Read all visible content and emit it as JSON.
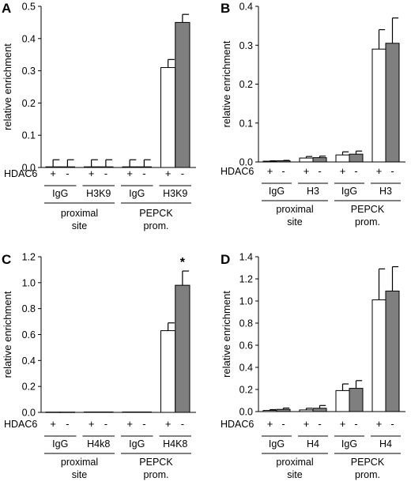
{
  "chart_data": [
    {
      "panel": "A",
      "type": "bar",
      "ylabel": "relative enrichment",
      "ylim": [
        0,
        0.5
      ],
      "yticks": [
        "0.0",
        "0.1",
        "0.2",
        "0.3",
        "0.4",
        "0.5"
      ],
      "row_label": "HDAC6",
      "bars": [
        {
          "treat": "+",
          "value": 0.002,
          "error": 0.022,
          "color": "white"
        },
        {
          "treat": "-",
          "value": 0.002,
          "error": 0.022,
          "color": "grey"
        },
        {
          "treat": "+",
          "value": 0.002,
          "error": 0.022,
          "color": "white"
        },
        {
          "treat": "-",
          "value": 0.002,
          "error": 0.022,
          "color": "grey"
        },
        {
          "treat": "+",
          "value": 0.002,
          "error": 0.022,
          "color": "white"
        },
        {
          "treat": "-",
          "value": 0.002,
          "error": 0.022,
          "color": "grey"
        },
        {
          "treat": "+",
          "value": 0.31,
          "error": 0.025,
          "color": "white"
        },
        {
          "treat": "-",
          "value": 0.45,
          "error": 0.025,
          "color": "grey"
        }
      ],
      "antibodies": [
        "IgG",
        "H3K9",
        "IgG",
        "H3K9"
      ],
      "sites": [
        "proximal\nsite",
        "PEPCK\nprom."
      ],
      "annotation": ""
    },
    {
      "panel": "B",
      "type": "bar",
      "ylabel": "relative enrichment",
      "ylim": [
        0,
        0.4
      ],
      "yticks": [
        "0.0",
        "0.1",
        "0.2",
        "0.3",
        "0.4"
      ],
      "row_label": "HDAC6",
      "bars": [
        {
          "treat": "+",
          "value": 0.002,
          "error": 0.001,
          "color": "white"
        },
        {
          "treat": "-",
          "value": 0.003,
          "error": 0.001,
          "color": "grey"
        },
        {
          "treat": "+",
          "value": 0.01,
          "error": 0.004,
          "color": "white"
        },
        {
          "treat": "-",
          "value": 0.011,
          "error": 0.004,
          "color": "grey"
        },
        {
          "treat": "+",
          "value": 0.018,
          "error": 0.008,
          "color": "white"
        },
        {
          "treat": "-",
          "value": 0.02,
          "error": 0.008,
          "color": "grey"
        },
        {
          "treat": "+",
          "value": 0.29,
          "error": 0.05,
          "color": "white"
        },
        {
          "treat": "-",
          "value": 0.305,
          "error": 0.065,
          "color": "grey"
        }
      ],
      "antibodies": [
        "IgG",
        "H3",
        "IgG",
        "H3"
      ],
      "sites": [
        "proximal\nsite",
        "PEPCK\nprom."
      ],
      "annotation": ""
    },
    {
      "panel": "C",
      "type": "bar",
      "ylabel": "relative enrichment",
      "ylim": [
        0,
        1.2
      ],
      "yticks": [
        "0.0",
        "0.2",
        "0.4",
        "0.6",
        "0.8",
        "1.0",
        "1.2"
      ],
      "row_label": "HDAC6",
      "bars": [
        {
          "treat": "+",
          "value": 0.002,
          "error": 0.0,
          "color": "white"
        },
        {
          "treat": "-",
          "value": 0.002,
          "error": 0.0,
          "color": "grey"
        },
        {
          "treat": "+",
          "value": 0.003,
          "error": 0.0,
          "color": "white"
        },
        {
          "treat": "-",
          "value": 0.003,
          "error": 0.0,
          "color": "grey"
        },
        {
          "treat": "+",
          "value": 0.003,
          "error": 0.0,
          "color": "white"
        },
        {
          "treat": "-",
          "value": 0.003,
          "error": 0.0,
          "color": "grey"
        },
        {
          "treat": "+",
          "value": 0.63,
          "error": 0.06,
          "color": "white"
        },
        {
          "treat": "-",
          "value": 0.98,
          "error": 0.11,
          "color": "grey"
        }
      ],
      "antibodies": [
        "IgG",
        "H4k8",
        "IgG",
        "H4K8"
      ],
      "sites": [
        "proximal\nsite",
        "PEPCK\nprom."
      ],
      "annotation": "*"
    },
    {
      "panel": "D",
      "type": "bar",
      "ylabel": "relative enrichment",
      "ylim": [
        0,
        1.4
      ],
      "yticks": [
        "0.0",
        "0.2",
        "0.4",
        "0.6",
        "0.8",
        "1.0",
        "1.2",
        "1.4"
      ],
      "row_label": "HDAC6",
      "bars": [
        {
          "treat": "+",
          "value": 0.01,
          "error": 0.008,
          "color": "white"
        },
        {
          "treat": "-",
          "value": 0.02,
          "error": 0.012,
          "color": "grey"
        },
        {
          "treat": "+",
          "value": 0.015,
          "error": 0.015,
          "color": "white"
        },
        {
          "treat": "-",
          "value": 0.03,
          "error": 0.025,
          "color": "grey"
        },
        {
          "treat": "+",
          "value": 0.19,
          "error": 0.06,
          "color": "white"
        },
        {
          "treat": "-",
          "value": 0.21,
          "error": 0.07,
          "color": "grey"
        },
        {
          "treat": "+",
          "value": 1.01,
          "error": 0.28,
          "color": "white"
        },
        {
          "treat": "-",
          "value": 1.09,
          "error": 0.22,
          "color": "grey"
        }
      ],
      "antibodies": [
        "IgG",
        "H4",
        "IgG",
        "H4"
      ],
      "sites": [
        "proximal\nsite",
        "PEPCK\nprom."
      ],
      "annotation": ""
    }
  ]
}
